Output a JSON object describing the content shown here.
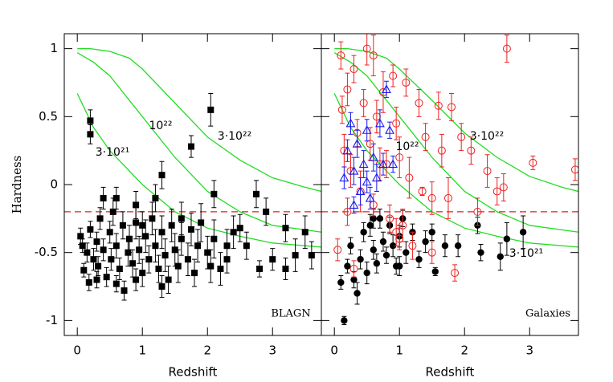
{
  "chart_data": [
    {
      "type": "scatter",
      "label": "BLAGN",
      "label_color": "#1010dd",
      "xlabel": "Redshift",
      "ylabel": "Hardness",
      "xlim": [
        -0.2,
        3.75
      ],
      "ylim": [
        -1.11,
        1.11
      ],
      "xticks": [
        0,
        1,
        2,
        3
      ],
      "yticks": [
        1,
        0.5,
        0,
        -0.5,
        -1
      ],
      "hline": -0.2,
      "hline_color": "#dd2020",
      "curves": [
        {
          "label": "3·10²²",
          "color": "#22dd22",
          "x": [
            0,
            0.2,
            0.5,
            0.8,
            1,
            1.5,
            2,
            2.5,
            3,
            3.5,
            3.75
          ],
          "y": [
            1,
            1,
            0.98,
            0.93,
            0.85,
            0.6,
            0.35,
            0.18,
            0.05,
            -0.02,
            -0.05
          ]
        },
        {
          "label": "10²²",
          "color": "#22dd22",
          "x": [
            0,
            0.25,
            0.5,
            1,
            1.5,
            2,
            2.5,
            3,
            3.75
          ],
          "y": [
            0.97,
            0.9,
            0.8,
            0.5,
            0.2,
            -0.05,
            -0.2,
            -0.3,
            -0.35
          ]
        },
        {
          "label": "3·10²¹",
          "color": "#22dd22",
          "x": [
            0,
            0.25,
            0.5,
            1,
            1.5,
            2,
            2.5,
            3,
            3.75
          ],
          "y": [
            0.67,
            0.42,
            0.25,
            0.0,
            -0.2,
            -0.32,
            -0.38,
            -0.43,
            -0.46
          ]
        }
      ],
      "series": [
        {
          "marker": "square",
          "color": "#000000",
          "x": [
            0.2,
            0.2,
            1.3,
            1.75,
            2.05,
            2.75,
            2.1,
            1.2,
            0.4,
            0.6,
            0.9,
            2.5,
            2.9,
            3.2,
            3.35,
            3.5,
            3.6,
            3.0,
            3.2,
            2.8,
            2.3,
            2.6,
            0.05,
            0.08,
            0.1,
            0.15,
            0.18,
            0.2,
            0.25,
            0.3,
            0.32,
            0.35,
            0.4,
            0.45,
            0.5,
            0.52,
            0.55,
            0.6,
            0.65,
            0.7,
            0.72,
            0.78,
            0.8,
            0.85,
            0.9,
            0.95,
            1.0,
            1.05,
            1.1,
            1.15,
            1.2,
            1.25,
            1.3,
            1.35,
            1.4,
            1.45,
            1.5,
            1.55,
            1.6,
            1.7,
            1.75,
            1.8,
            1.85,
            1.9,
            2.0,
            2.05,
            2.1,
            2.2,
            2.3,
            2.4,
            0.6,
            1.0,
            1.3,
            0.3,
            0.9,
            1.6
          ],
          "y": [
            0.47,
            0.37,
            0.07,
            0.28,
            0.55,
            -0.07,
            -0.07,
            -0.1,
            -0.1,
            -0.1,
            -0.15,
            -0.32,
            -0.2,
            -0.32,
            -0.52,
            -0.35,
            -0.52,
            -0.55,
            -0.62,
            -0.62,
            -0.55,
            -0.45,
            -0.38,
            -0.45,
            -0.63,
            -0.5,
            -0.72,
            -0.33,
            -0.55,
            -0.42,
            -0.6,
            -0.25,
            -0.48,
            -0.68,
            -0.35,
            -0.55,
            -0.2,
            -0.45,
            -0.62,
            -0.3,
            -0.78,
            -0.5,
            -0.4,
            -0.58,
            -0.28,
            -0.48,
            -0.65,
            -0.38,
            -0.55,
            -0.25,
            -0.45,
            -0.62,
            -0.35,
            -0.52,
            -0.7,
            -0.3,
            -0.48,
            -0.6,
            -0.4,
            -0.55,
            -0.33,
            -0.65,
            -0.45,
            -0.28,
            -0.5,
            -0.6,
            -0.4,
            -0.62,
            -0.45,
            -0.35,
            -0.73,
            -0.3,
            -0.75,
            -0.7,
            -0.7,
            -0.25
          ],
          "yerr": [
            0.08,
            0.07,
            0.1,
            0.08,
            0.12,
            0.1,
            0.1,
            0.1,
            0.08,
            0.08,
            0.1,
            0.1,
            0.1,
            0.1,
            0.12,
            0.12,
            0.1,
            0.08,
            0.08,
            0.06,
            0.1,
            0.1,
            0.06,
            0.05,
            0.05,
            0.07,
            0.06,
            0.06,
            0.08,
            0.07,
            0.07,
            0.08,
            0.08,
            0.07,
            0.08,
            0.08,
            0.1,
            0.09,
            0.08,
            0.1,
            0.07,
            0.1,
            0.1,
            0.1,
            0.12,
            0.1,
            0.1,
            0.12,
            0.1,
            0.12,
            0.12,
            0.1,
            0.12,
            0.12,
            0.1,
            0.12,
            0.12,
            0.12,
            0.12,
            0.12,
            0.12,
            0.1,
            0.12,
            0.14,
            0.12,
            0.12,
            0.14,
            0.12,
            0.12,
            0.12,
            0.06,
            0.1,
            0.08,
            0.06,
            0.08,
            0.12
          ]
        }
      ]
    },
    {
      "type": "scatter",
      "label": "Galaxies",
      "label_color": "#1010dd",
      "xlabel": "Redshift",
      "xlim": [
        -0.2,
        3.75
      ],
      "ylim": [
        -1.11,
        1.11
      ],
      "xticks": [
        0,
        1,
        2,
        3
      ],
      "hline": -0.2,
      "hline_color": "#dd2020",
      "curves": [
        {
          "label": "3·10²²",
          "color": "#22dd22",
          "x": [
            0,
            0.2,
            0.5,
            0.8,
            1,
            1.5,
            2,
            2.5,
            3,
            3.5,
            3.75
          ],
          "y": [
            1,
            1,
            0.98,
            0.93,
            0.85,
            0.62,
            0.38,
            0.2,
            0.06,
            -0.02,
            -0.05
          ]
        },
        {
          "label": "10²²",
          "color": "#22dd22",
          "x": [
            0,
            0.25,
            0.5,
            1,
            1.5,
            2,
            2.5,
            3,
            3.75
          ],
          "y": [
            0.97,
            0.9,
            0.8,
            0.5,
            0.2,
            -0.05,
            -0.2,
            -0.3,
            -0.35
          ]
        },
        {
          "label": "3·10²¹",
          "color": "#22dd22",
          "x": [
            0,
            0.25,
            0.5,
            1,
            1.5,
            2,
            2.5,
            3,
            3.75
          ],
          "y": [
            0.67,
            0.42,
            0.25,
            0.0,
            -0.2,
            -0.32,
            -0.38,
            -0.43,
            -0.46
          ]
        }
      ],
      "series": [
        {
          "marker": "circle",
          "color": "#000000",
          "x": [
            0.15,
            0.1,
            0.2,
            0.25,
            0.3,
            0.35,
            0.4,
            0.45,
            0.5,
            0.55,
            0.6,
            0.65,
            0.7,
            0.75,
            0.8,
            0.85,
            0.9,
            0.95,
            1.0,
            1.05,
            1.1,
            1.2,
            1.3,
            1.4,
            1.5,
            1.55,
            1.7,
            1.9,
            2.2,
            2.25,
            2.55,
            2.65,
            2.9,
            0.6,
            1.0
          ],
          "y": [
            -1.0,
            -0.72,
            -0.6,
            -0.45,
            -0.7,
            -0.8,
            -0.55,
            -0.35,
            -0.65,
            -0.3,
            -0.48,
            -0.58,
            -0.25,
            -0.42,
            -0.52,
            -0.3,
            -0.45,
            -0.6,
            -0.38,
            -0.25,
            -0.5,
            -0.35,
            -0.55,
            -0.42,
            -0.35,
            -0.64,
            -0.45,
            -0.45,
            -0.3,
            -0.5,
            -0.53,
            -0.4,
            -0.35,
            -0.25,
            -0.6
          ],
          "yerr": [
            0.03,
            0.05,
            0.05,
            0.06,
            0.06,
            0.08,
            0.07,
            0.07,
            0.08,
            0.08,
            0.07,
            0.07,
            0.07,
            0.07,
            0.06,
            0.06,
            0.08,
            0.06,
            0.08,
            0.06,
            0.08,
            0.06,
            0.06,
            0.08,
            0.06,
            0.03,
            0.08,
            0.08,
            0.06,
            0.06,
            0.1,
            0.12,
            0.12,
            0.07,
            0.07
          ]
        },
        {
          "marker": "open-circle",
          "color": "#ee2020",
          "x": [
            0.05,
            0.1,
            0.12,
            0.15,
            0.2,
            0.25,
            0.3,
            0.35,
            0.4,
            0.45,
            0.5,
            0.55,
            0.6,
            0.65,
            0.7,
            0.75,
            0.85,
            0.9,
            0.95,
            1.0,
            1.05,
            1.1,
            1.15,
            1.2,
            1.3,
            1.4,
            1.5,
            1.6,
            1.65,
            1.75,
            1.8,
            1.85,
            1.95,
            2.1,
            2.2,
            2.35,
            2.5,
            2.6,
            2.65,
            3.05,
            3.7,
            0.2,
            0.3,
            0.6,
            0.95,
            1.5,
            1.35,
            0.8,
            1.0
          ],
          "y": [
            -0.48,
            0.95,
            0.55,
            0.25,
            0.7,
            0.1,
            0.85,
            0.38,
            -0.05,
            0.6,
            1.0,
            0.3,
            0.95,
            0.5,
            0.15,
            0.68,
            -0.25,
            0.8,
            0.45,
            0.2,
            -0.3,
            0.75,
            0.05,
            -0.45,
            0.6,
            0.35,
            -0.1,
            0.58,
            0.25,
            -0.1,
            0.57,
            -0.65,
            0.35,
            0.25,
            -0.2,
            0.1,
            -0.05,
            -0.02,
            1.0,
            0.16,
            0.11,
            -0.2,
            -0.62,
            -0.15,
            -0.35,
            -0.5,
            -0.05,
            0.15,
            -0.4
          ],
          "yerr": [
            0.08,
            0.1,
            0.1,
            0.12,
            0.12,
            0.12,
            0.1,
            0.1,
            0.15,
            0.1,
            0.12,
            0.12,
            0.15,
            0.12,
            0.12,
            0.15,
            0.1,
            0.08,
            0.12,
            0.15,
            0.12,
            0.1,
            0.15,
            0.1,
            0.1,
            0.1,
            0.12,
            0.1,
            0.12,
            0.15,
            0.1,
            0.06,
            0.1,
            0.1,
            0.1,
            0.12,
            0.1,
            0.1,
            0.1,
            0.05,
            0.08,
            0.1,
            0.06,
            0.08,
            0.1,
            0.08,
            0.03,
            0.1,
            0.08
          ]
        },
        {
          "marker": "triangle",
          "color": "#1a1aee",
          "x": [
            0.15,
            0.2,
            0.25,
            0.3,
            0.35,
            0.4,
            0.45,
            0.5,
            0.55,
            0.6,
            0.65,
            0.7,
            0.75,
            0.8,
            0.85,
            0.9,
            0.3,
            0.5
          ],
          "y": [
            0.05,
            0.25,
            0.45,
            0.1,
            0.3,
            -0.05,
            0.15,
            0.4,
            -0.1,
            0.2,
            0.05,
            0.45,
            0.15,
            0.7,
            0.4,
            0.15,
            -0.15,
            0.02
          ],
          "yerr": [
            0.08,
            0.08,
            0.08,
            0.1,
            0.1,
            0.1,
            0.1,
            0.08,
            0.08,
            0.1,
            0.1,
            0.1,
            0.08,
            0.06,
            0.06,
            0.06,
            0.06,
            0.08
          ]
        }
      ]
    }
  ]
}
